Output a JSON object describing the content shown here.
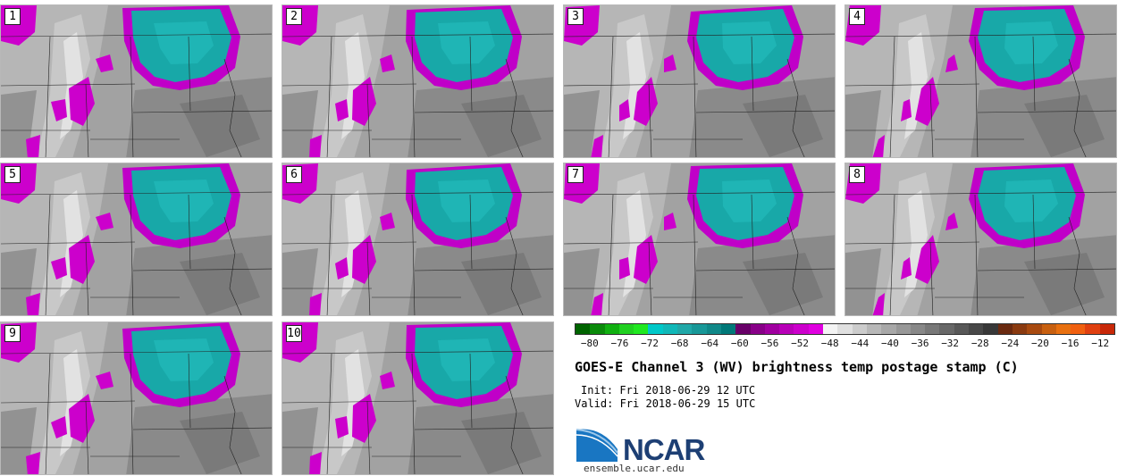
{
  "panels": [
    {
      "label": "1"
    },
    {
      "label": "2"
    },
    {
      "label": "3"
    },
    {
      "label": "4"
    },
    {
      "label": "5"
    },
    {
      "label": "6"
    },
    {
      "label": "7"
    },
    {
      "label": "8"
    },
    {
      "label": "9"
    },
    {
      "label": "10"
    }
  ],
  "colorbar": {
    "colors": [
      "#006400",
      "#0a8a0a",
      "#10b010",
      "#20d020",
      "#20e820",
      "#00c8c8",
      "#10b8b8",
      "#20a8a8",
      "#189898",
      "#108888",
      "#007878",
      "#680068",
      "#880088",
      "#a000a0",
      "#b800b8",
      "#cc00cc",
      "#e000e0",
      "#f4f4f4",
      "#e0e0e0",
      "#cccccc",
      "#b8b8b8",
      "#a8a8a8",
      "#989898",
      "#888888",
      "#787878",
      "#686868",
      "#585858",
      "#484848",
      "#383838",
      "#6a2a10",
      "#8a3a10",
      "#a84a10",
      "#c86010",
      "#e87010",
      "#f06010",
      "#e04010",
      "#c82808"
    ],
    "tick_labels": [
      "-80",
      "-76",
      "-72",
      "-68",
      "-64",
      "-60",
      "-56",
      "-52",
      "-48",
      "-44",
      "-40",
      "-36",
      "-32",
      "-28",
      "-24",
      "-20",
      "-16",
      "-12"
    ],
    "vmin": -82,
    "vmax": -10
  },
  "title": "GOES-E Channel 3 (WV) brightness temp postage stamp (C)",
  "init_text": "Init: Fri 2018-06-29 12 UTC",
  "valid_text": "Valid: Fri 2018-06-29 15 UTC",
  "logo": {
    "text": "NCAR",
    "url": "ensemble.ucar.edu"
  }
}
